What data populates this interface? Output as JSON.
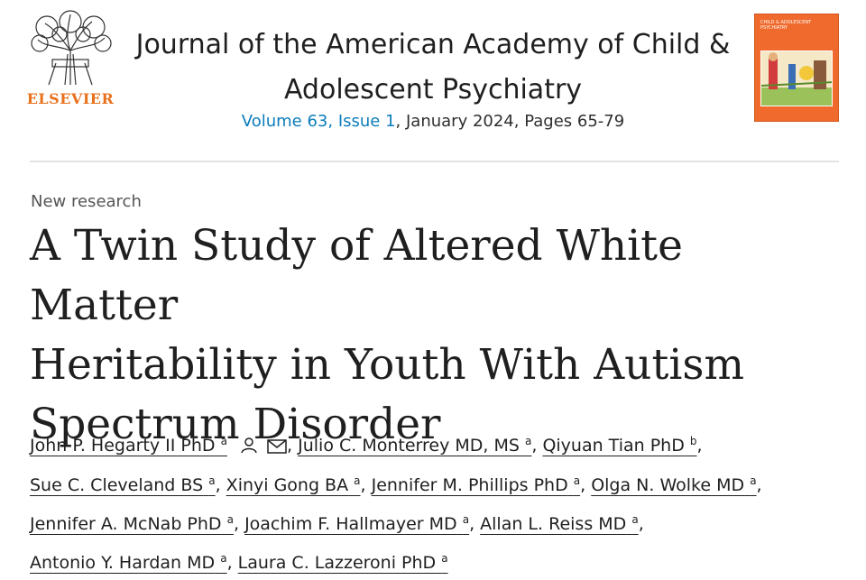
{
  "publisher": {
    "name": "ELSEVIER",
    "logo_icon": "tree-logo-icon",
    "brand_color": "#e9711c"
  },
  "journal": {
    "title_line1": "Journal of the American Academy of Child &",
    "title_line2": "Adolescent Psychiatry",
    "volume_issue": "Volume 63, Issue 1",
    "date_pages": ", January 2024, Pages 65-79",
    "link_color": "#0c7dbb",
    "cover_title": "CHILD & ADOLESCENT PSYCHIATRY",
    "cover_color": "#ef6a2c"
  },
  "article": {
    "type": "New research",
    "title_line1": "A Twin Study of Altered White Matter",
    "title_line2": "Heritability in Youth With Autism",
    "title_line3": "Spectrum Disorder"
  },
  "authors": [
    {
      "name": "John P. Hegarty II PhD",
      "aff": "a",
      "icons": [
        "person-icon",
        "envelope-icon"
      ]
    },
    {
      "name": "Julio C. Monterrey MD, MS",
      "aff": "a"
    },
    {
      "name": "Qiyuan Tian PhD",
      "aff": "b"
    },
    {
      "name": "Sue C. Cleveland BS",
      "aff": "a"
    },
    {
      "name": "Xinyi Gong BA",
      "aff": "a"
    },
    {
      "name": "Jennifer M. Phillips PhD",
      "aff": "a"
    },
    {
      "name": "Olga N. Wolke MD",
      "aff": "a"
    },
    {
      "name": "Jennifer A. McNab PhD",
      "aff": "a"
    },
    {
      "name": "Joachim F. Hallmayer MD",
      "aff": "a"
    },
    {
      "name": "Allan L. Reiss MD",
      "aff": "a"
    },
    {
      "name": "Antonio Y. Hardan MD",
      "aff": "a"
    },
    {
      "name": "Laura C. Lazzeroni PhD",
      "aff": "a"
    }
  ]
}
